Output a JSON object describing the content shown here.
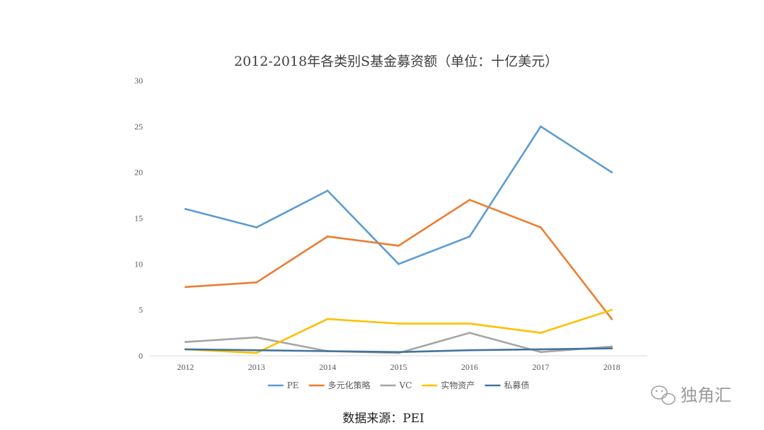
{
  "chart_data": {
    "type": "line",
    "title": "2012-2018年各类别S基金募资额（单位：十亿美元）",
    "xlabel": "",
    "ylabel": "",
    "categories": [
      "2012",
      "2013",
      "2014",
      "2015",
      "2016",
      "2017",
      "2018"
    ],
    "ylim": [
      0,
      30
    ],
    "yticks": [
      "0",
      "5",
      "10",
      "15",
      "20",
      "25",
      "30"
    ],
    "grid": false,
    "legend_position": "bottom",
    "series": [
      {
        "name": "PE",
        "color": "#5b9bd5",
        "values": [
          16,
          14,
          18,
          10,
          13,
          25,
          20
        ]
      },
      {
        "name": "多元化策略",
        "color": "#ed7d31",
        "values": [
          7.5,
          8,
          13,
          12,
          17,
          14,
          4
        ]
      },
      {
        "name": "VC",
        "color": "#a5a5a5",
        "values": [
          1.5,
          2,
          0.5,
          0.3,
          2.5,
          0.4,
          1
        ]
      },
      {
        "name": "实物资产",
        "color": "#ffc000",
        "values": [
          0.7,
          0.3,
          4,
          3.5,
          3.5,
          2.5,
          5
        ]
      },
      {
        "name": "私募债",
        "color": "#44739e",
        "values": [
          0.7,
          0.6,
          0.5,
          0.4,
          0.6,
          0.7,
          0.8
        ]
      }
    ]
  },
  "source_note": "数据来源：PEI",
  "watermark": {
    "text": "独角汇",
    "icon": "wechat-icon"
  }
}
